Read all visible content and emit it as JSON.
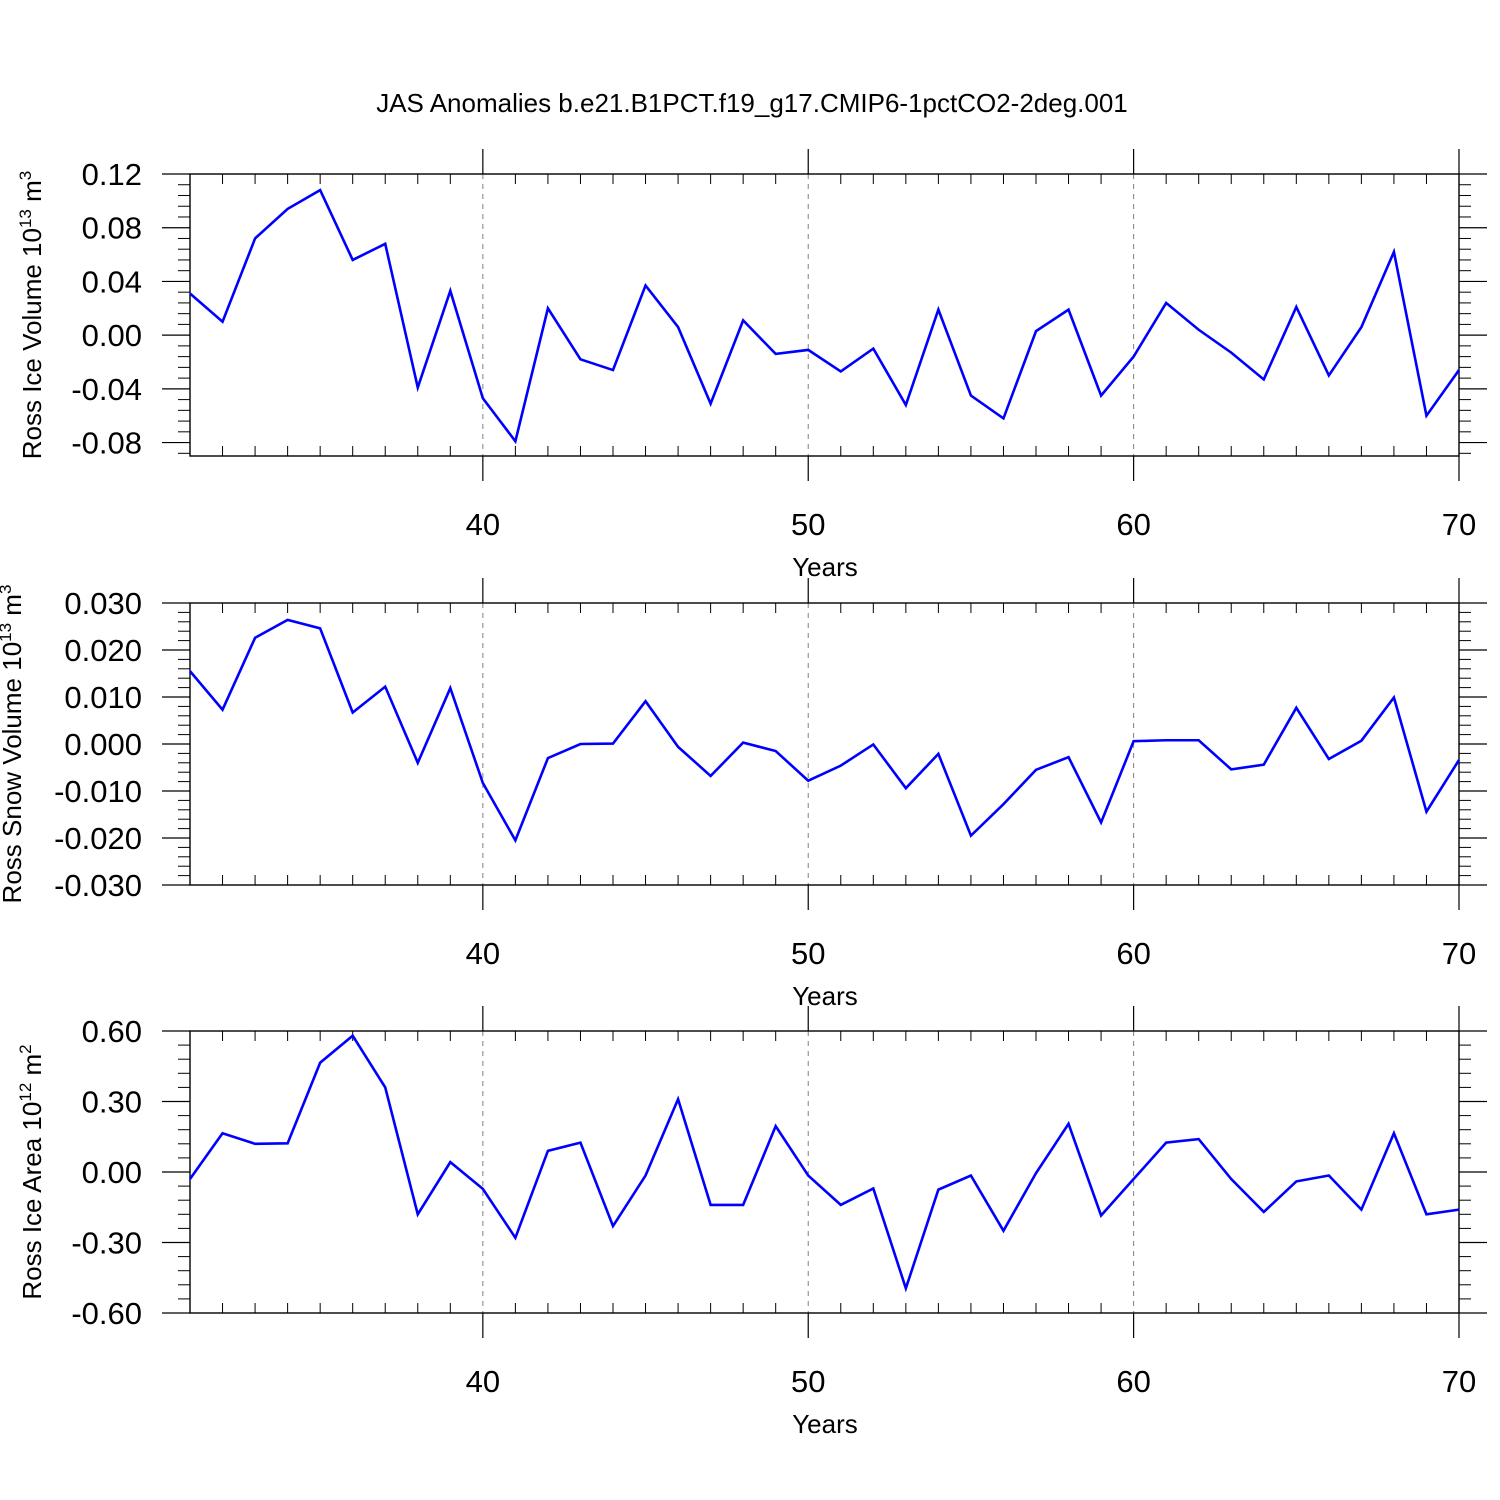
{
  "title": "JAS Anomalies b.e21.B1PCT.f19_g17.CMIP6-1pctCO2-2deg.001",
  "colors": {
    "line": "#0000ff",
    "axis": "#000000",
    "grid": "#808080",
    "background": "#ffffff"
  },
  "chart_data": [
    {
      "type": "line",
      "xlabel": "Years",
      "ylabel": {
        "text": "Ross Ice Volume 10",
        "exponent": "13",
        "unit": " m",
        "unit_exponent": "3"
      },
      "xlim": [
        31,
        70
      ],
      "ylim": [
        -0.09,
        0.12
      ],
      "yticks": [
        0.12,
        0.08,
        0.04,
        0.0,
        -0.04,
        -0.08
      ],
      "ytick_labels": [
        "0.12",
        "0.08",
        "0.04",
        "0.00",
        "-0.04",
        "-0.08"
      ],
      "xticks": [
        40,
        50,
        60,
        70
      ],
      "xtick_labels": [
        "40",
        "50",
        "60",
        "70"
      ],
      "grid": "vertical dashed at major x ticks",
      "x": [
        31,
        32,
        33,
        34,
        35,
        36,
        37,
        38,
        39,
        40,
        41,
        42,
        43,
        44,
        45,
        46,
        47,
        48,
        49,
        50,
        51,
        52,
        53,
        54,
        55,
        56,
        57,
        58,
        59,
        60,
        61,
        62,
        63,
        64,
        65,
        66,
        67,
        68,
        69,
        70
      ],
      "series": [
        {
          "values": [
            0.031,
            0.01,
            0.072,
            0.094,
            0.108,
            0.056,
            0.068,
            -0.039,
            0.033,
            -0.047,
            -0.079,
            0.02,
            -0.018,
            -0.026,
            0.037,
            0.006,
            -0.051,
            0.011,
            -0.014,
            -0.011,
            -0.027,
            -0.01,
            -0.052,
            0.019,
            -0.045,
            -0.062,
            0.003,
            0.019,
            -0.045,
            -0.016,
            0.024,
            0.004,
            -0.013,
            -0.033,
            0.021,
            -0.03,
            0.006,
            0.062,
            -0.06,
            -0.026
          ]
        }
      ]
    },
    {
      "type": "line",
      "xlabel": "Years",
      "ylabel": {
        "text": "Ross Snow Volume 10",
        "exponent": "13",
        "unit": " m",
        "unit_exponent": "3"
      },
      "xlim": [
        31,
        70
      ],
      "ylim": [
        -0.03,
        0.03
      ],
      "yticks": [
        0.03,
        0.02,
        0.01,
        0.0,
        -0.01,
        -0.02,
        -0.03
      ],
      "ytick_labels": [
        "0.030",
        "0.020",
        "0.010",
        "0.000",
        "-0.010",
        "-0.020",
        "-0.030"
      ],
      "xticks": [
        40,
        50,
        60,
        70
      ],
      "xtick_labels": [
        "40",
        "50",
        "60",
        "70"
      ],
      "grid": "vertical dashed at major x ticks",
      "x": [
        31,
        32,
        33,
        34,
        35,
        36,
        37,
        38,
        39,
        40,
        41,
        42,
        43,
        44,
        45,
        46,
        47,
        48,
        49,
        50,
        51,
        52,
        53,
        54,
        55,
        56,
        57,
        58,
        59,
        60,
        61,
        62,
        63,
        64,
        65,
        66,
        67,
        68,
        69,
        70
      ],
      "series": [
        {
          "values": [
            0.0155,
            0.0073,
            0.0226,
            0.0264,
            0.0246,
            0.0067,
            0.0122,
            -0.004,
            0.0119,
            -0.0083,
            -0.0205,
            -0.003,
            0.0,
            0.0001,
            0.0091,
            -0.0006,
            -0.0068,
            0.0003,
            -0.0015,
            -0.0078,
            -0.0046,
            -0.0001,
            -0.0094,
            -0.0021,
            -0.0195,
            -0.0128,
            -0.0055,
            -0.0028,
            -0.0167,
            0.0006,
            0.0008,
            0.0008,
            -0.0054,
            -0.0044,
            0.0077,
            -0.0032,
            0.0007,
            0.0099,
            -0.0144,
            -0.0034
          ]
        }
      ]
    },
    {
      "type": "line",
      "xlabel": "Years",
      "ylabel": {
        "text": "Ross Ice Area 10",
        "exponent": "12",
        "unit": " m",
        "unit_exponent": "2"
      },
      "xlim": [
        31,
        70
      ],
      "ylim": [
        -0.6,
        0.6
      ],
      "yticks": [
        0.6,
        0.3,
        0.0,
        -0.3,
        -0.6
      ],
      "ytick_labels": [
        "0.60",
        "0.30",
        "0.00",
        "-0.30",
        "-0.60"
      ],
      "xticks": [
        40,
        50,
        60,
        70
      ],
      "xtick_labels": [
        "40",
        "50",
        "60",
        "70"
      ],
      "grid": "vertical dashed at major x ticks",
      "x": [
        31,
        32,
        33,
        34,
        35,
        36,
        37,
        38,
        39,
        40,
        41,
        42,
        43,
        44,
        45,
        46,
        47,
        48,
        49,
        50,
        51,
        52,
        53,
        54,
        55,
        56,
        57,
        58,
        59,
        60,
        61,
        62,
        63,
        64,
        65,
        66,
        67,
        68,
        69,
        70
      ],
      "series": [
        {
          "values": [
            -0.03,
            0.165,
            0.12,
            0.122,
            0.465,
            0.58,
            0.36,
            -0.18,
            0.042,
            -0.072,
            -0.28,
            0.09,
            0.125,
            -0.23,
            -0.015,
            0.31,
            -0.14,
            -0.14,
            0.195,
            -0.015,
            -0.14,
            -0.07,
            -0.495,
            -0.075,
            -0.015,
            -0.25,
            -0.005,
            0.205,
            -0.185,
            -0.03,
            0.125,
            0.14,
            -0.03,
            -0.17,
            -0.04,
            -0.015,
            -0.16,
            0.165,
            -0.18,
            -0.16
          ]
        }
      ]
    }
  ]
}
